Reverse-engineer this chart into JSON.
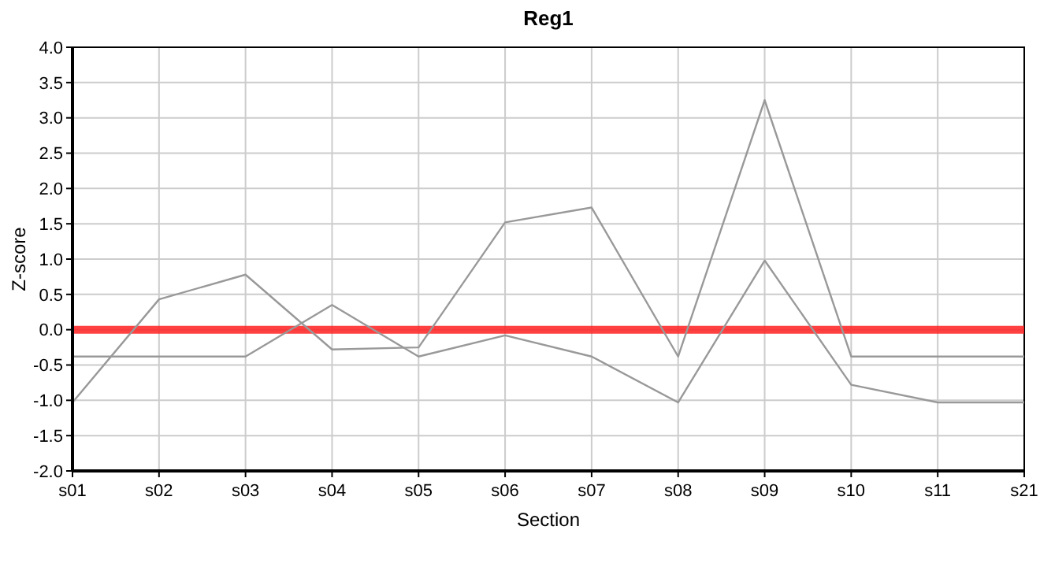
{
  "chart_data": {
    "type": "line",
    "title": "Reg1",
    "xlabel": "Section",
    "ylabel": "Z-score",
    "categories": [
      "s01",
      "s02",
      "s03",
      "s04",
      "s05",
      "s06",
      "s07",
      "s08",
      "s09",
      "s10",
      "s11",
      "s21"
    ],
    "series": [
      {
        "color": "#999999",
        "values": [
          -1.03,
          0.43,
          0.78,
          -0.28,
          -0.25,
          1.52,
          1.73,
          -0.38,
          3.25,
          -0.38,
          -0.38,
          -0.38
        ]
      },
      {
        "color": "#999999",
        "values": [
          -0.38,
          -0.38,
          -0.38,
          0.35,
          -0.38,
          -0.08,
          -0.38,
          -1.03,
          0.98,
          -0.78,
          -1.03,
          -1.03
        ]
      }
    ],
    "ylim": [
      -2,
      4
    ],
    "yticks": [
      {
        "value": -2,
        "label": "-2.0"
      },
      {
        "value": -1.5,
        "label": "-1.5"
      },
      {
        "value": -1,
        "label": "-1.0"
      },
      {
        "value": -0.5,
        "label": "-0.5"
      },
      {
        "value": 0,
        "label": "0.0"
      },
      {
        "value": 0.5,
        "label": "0.5"
      },
      {
        "value": 1,
        "label": "1.0"
      },
      {
        "value": 1.5,
        "label": "1.5"
      },
      {
        "value": 2,
        "label": "2.0"
      },
      {
        "value": 2.5,
        "label": "2.5"
      },
      {
        "value": 3,
        "label": "3.0"
      },
      {
        "value": 3.5,
        "label": "3.5"
      },
      {
        "value": 4,
        "label": "4.0"
      }
    ],
    "grid": true,
    "marker": "none",
    "line_style": "solid",
    "ref_lines": [
      {
        "axis": "y",
        "value": 0,
        "color": "#ff2020"
      }
    ]
  }
}
